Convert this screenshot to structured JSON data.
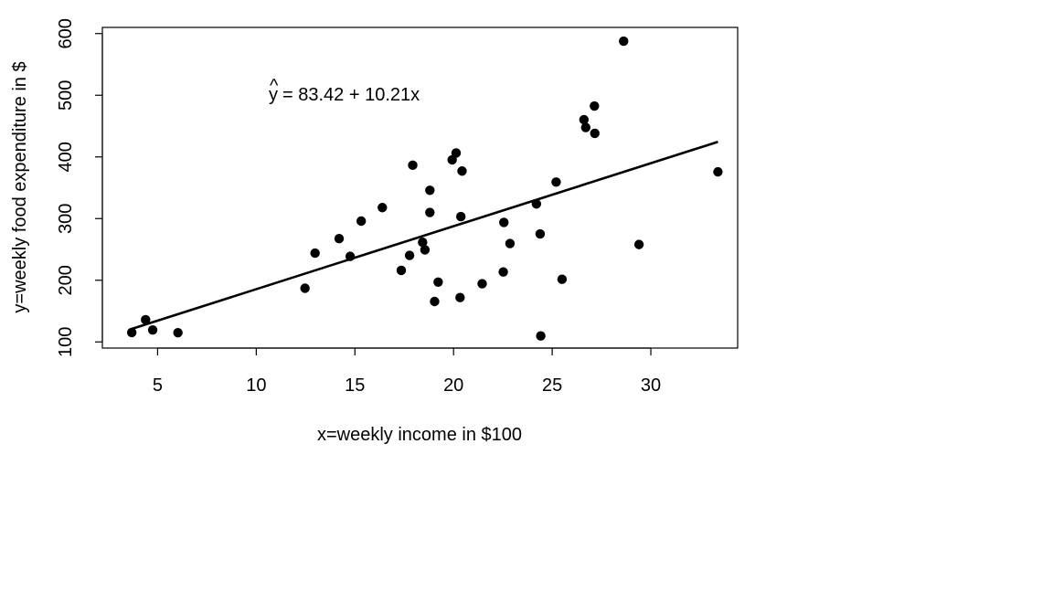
{
  "chart_data": {
    "type": "scatter",
    "title": "",
    "xlabel": "x=weekly income in $100",
    "ylabel": "y=weekly food expenditure in $",
    "xlim": [
      2.2,
      34.4
    ],
    "ylim": [
      90,
      610
    ],
    "xticks": [
      5,
      10,
      15,
      20,
      25,
      30
    ],
    "yticks": [
      100,
      200,
      300,
      400,
      500,
      600
    ],
    "grid": false,
    "box": true,
    "annotation": {
      "yhat_symbol": "y",
      "hat_symbol": "^",
      "equation_text": "= 83.42 + 10.21x"
    },
    "regression_line": {
      "intercept": 83.42,
      "slope": 10.21,
      "x_range": [
        3.69,
        33.4
      ]
    },
    "points": {
      "x": [
        3.69,
        4.39,
        4.75,
        6.03,
        12.47,
        12.98,
        14.2,
        14.76,
        15.32,
        16.39,
        17.35,
        17.77,
        17.93,
        18.43,
        18.55,
        18.8,
        18.8,
        19.04,
        19.22,
        19.93,
        20.13,
        20.33,
        20.37,
        20.43,
        21.45,
        22.52,
        22.55,
        22.86,
        24.2,
        24.39,
        24.42,
        25.2,
        25.5,
        26.61,
        26.7,
        27.14,
        27.16,
        28.62,
        29.4,
        33.4
      ],
      "y": [
        115.22,
        135.98,
        119.34,
        114.96,
        187.05,
        243.92,
        267.43,
        238.71,
        295.94,
        317.78,
        216.0,
        240.35,
        386.57,
        261.53,
        249.34,
        309.87,
        345.89,
        165.54,
        196.98,
        395.26,
        406.34,
        171.92,
        303.23,
        377.04,
        194.35,
        213.48,
        293.87,
        259.61,
        323.71,
        275.02,
        109.71,
        359.19,
        201.51,
        460.36,
        447.76,
        482.55,
        438.29,
        587.66,
        257.95,
        375.73
      ]
    },
    "colors": {
      "points": "#000000",
      "line": "#000000",
      "axes": "#000000"
    }
  }
}
